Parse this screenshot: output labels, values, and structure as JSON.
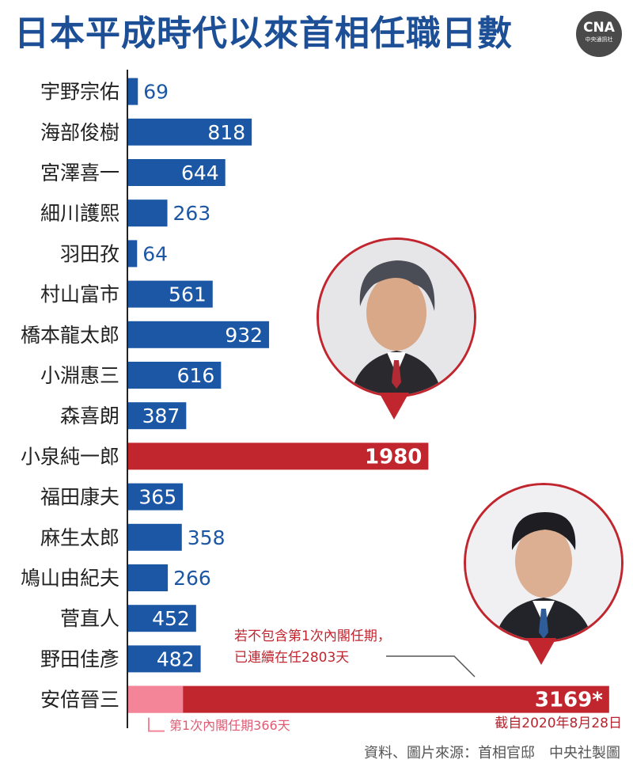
{
  "title": "日本平成時代以來首相任職日數",
  "logo": {
    "text": "CNA",
    "subtext": "中央通訊社"
  },
  "chart_data": {
    "type": "bar",
    "orientation": "horizontal",
    "categories": [
      "宇野宗佑",
      "海部俊樹",
      "宮澤喜一",
      "細川護熙",
      "羽田孜",
      "村山富市",
      "橋本龍太郎",
      "小淵惠三",
      "森喜朗",
      "小泉純一郎",
      "福田康夫",
      "麻生太郎",
      "鳩山由紀夫",
      "菅直人",
      "野田佳彥",
      "安倍晉三"
    ],
    "values": [
      69,
      818,
      644,
      263,
      64,
      561,
      932,
      616,
      387,
      1980,
      365,
      358,
      266,
      452,
      482,
      3169
    ],
    "value_labels": [
      "69",
      "818",
      "644",
      "263",
      "64",
      "561",
      "932",
      "616",
      "387",
      "1980",
      "365",
      "358",
      "266",
      "452",
      "482",
      "3169*"
    ],
    "highlighted": [
      "小泉純一郎",
      "安倍晉三"
    ],
    "segments": {
      "安倍晉三": {
        "first_term": 366
      }
    },
    "colors": {
      "default": "#1c57a5",
      "highlight": "#c1262f",
      "first_term": "#f48599",
      "title": "#1d4f96"
    },
    "xlim": [
      0,
      3300
    ],
    "grid": false
  },
  "annotations": {
    "first_term": "第1次內閣任期366天",
    "note_line1": "若不包含第1次內閣任期，",
    "note_line2": "已連續在任2803天",
    "as_of": "截自2020年8月28日"
  },
  "footer": "資料、圖片來源：首相官邸　中央社製圖"
}
